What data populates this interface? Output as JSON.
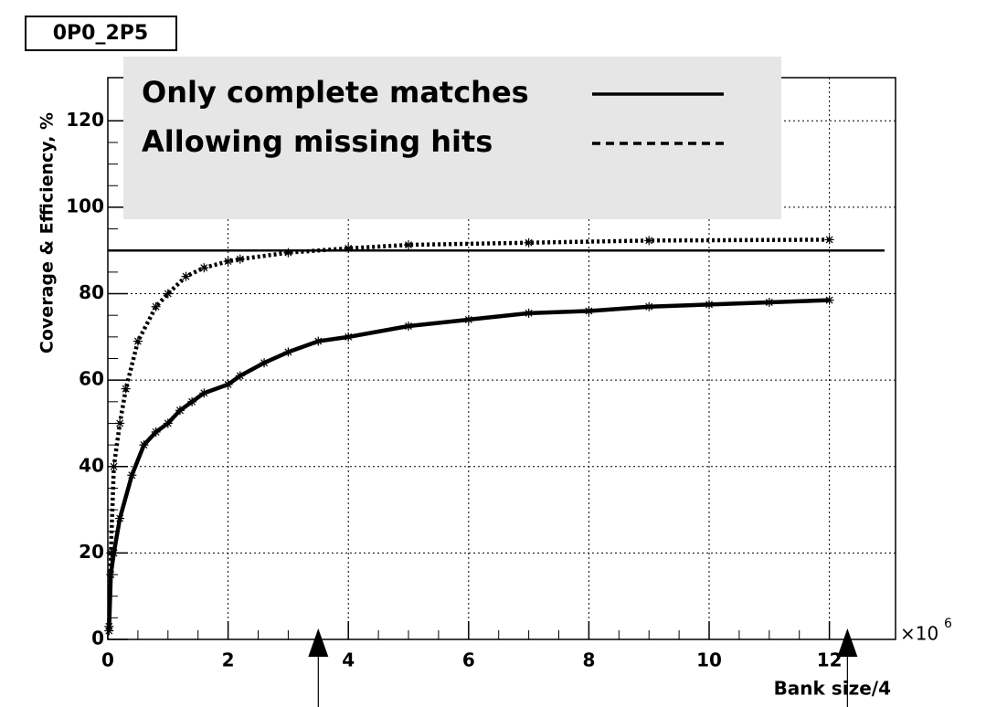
{
  "chart_data": {
    "type": "line",
    "title": "0P0_2P5",
    "y_label": "Coverage & Efficiency, %",
    "x_label": "Bank size/4",
    "x_multiplier": "×10",
    "x_multiplier_exponent": "6",
    "xlim": [
      0,
      13.1
    ],
    "ylim": [
      0,
      130
    ],
    "xticks": [
      0,
      2,
      4,
      6,
      8,
      10,
      12
    ],
    "yticks": [
      0,
      20,
      40,
      60,
      80,
      100,
      120
    ],
    "grid": true,
    "reference_line": 90,
    "arrows_x": [
      3.5,
      12.3
    ],
    "series": [
      {
        "name": "Only complete matches",
        "color": "#000000",
        "dash": "solid",
        "x": [
          0.02,
          0.05,
          0.1,
          0.2,
          0.4,
          0.6,
          0.8,
          1.0,
          1.2,
          1.4,
          1.6,
          2.0,
          2.2,
          2.6,
          3.0,
          3.5,
          4.0,
          5.0,
          6.0,
          7.0,
          8.0,
          9.0,
          10.0,
          11.0,
          12.0
        ],
        "values": [
          2,
          15,
          20,
          28,
          38,
          45,
          48,
          50,
          53,
          55,
          57,
          59,
          61,
          64,
          66.5,
          69,
          70,
          72.5,
          74,
          75.5,
          76,
          77,
          77.5,
          78,
          78.5
        ]
      },
      {
        "name": "Allowing missing hits",
        "color": "#000000",
        "dash": "dotted",
        "x": [
          0.02,
          0.05,
          0.1,
          0.2,
          0.3,
          0.5,
          0.8,
          1.0,
          1.3,
          1.6,
          2.0,
          2.2,
          3.0,
          4.0,
          5.0,
          7.0,
          9.0,
          12.0
        ],
        "values": [
          3,
          20,
          40,
          50,
          58,
          69,
          77,
          80,
          84,
          86,
          87.5,
          88,
          89.5,
          90.5,
          91.3,
          91.8,
          92.3,
          92.5
        ]
      }
    ]
  }
}
